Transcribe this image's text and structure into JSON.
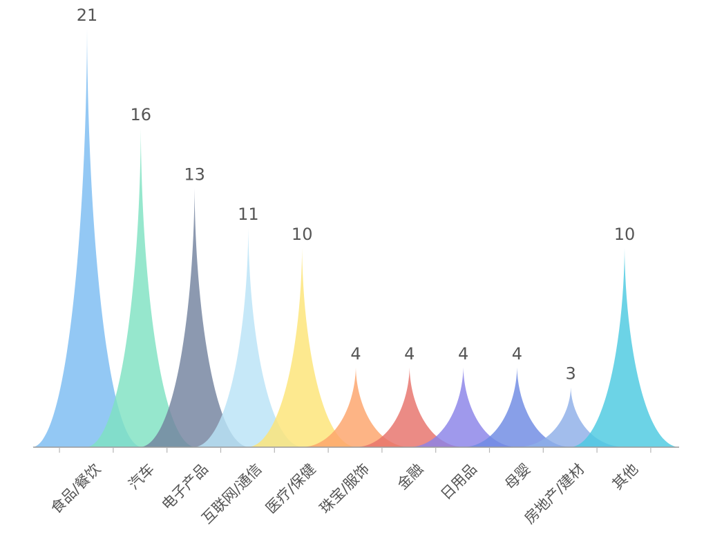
{
  "chart_data": {
    "type": "bar",
    "bar_style": "pictorial-spike",
    "categories": [
      "食品/餐饮",
      "汽车",
      "电子产品",
      "互联网/通信",
      "医疗/保健",
      "珠宝/服饰",
      "金融",
      "日用品",
      "母婴",
      "房地产/建材",
      "其他"
    ],
    "values": [
      21,
      16,
      13,
      11,
      10,
      4,
      4,
      4,
      4,
      3,
      10
    ],
    "colors": [
      "#7bbcf2",
      "#7fe2c2",
      "#73839f",
      "#b9e3f7",
      "#fde476",
      "#fca46a",
      "#e6726a",
      "#8a82e8",
      "#6e8ae3",
      "#8eaee8",
      "#4cc9e0"
    ],
    "title": "",
    "xlabel": "",
    "ylabel": "",
    "ylim": [
      0,
      21
    ],
    "grid": false,
    "legend": "none",
    "data_labels": "top"
  }
}
